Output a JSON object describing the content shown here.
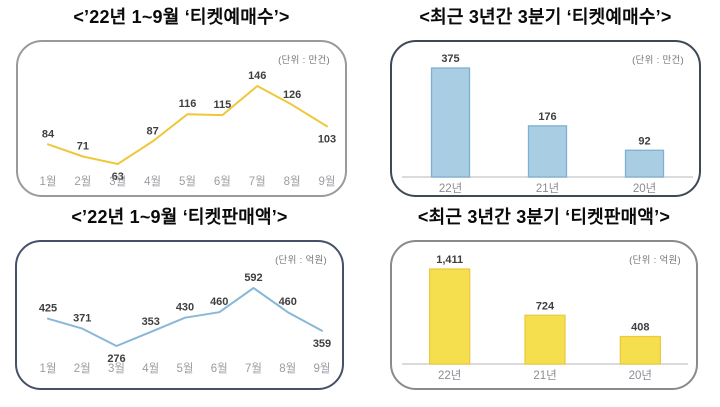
{
  "chart_data": [
    {
      "id": "ticket-reservations-monthly-2022",
      "type": "line",
      "title": "<’22년 1~9월 ‘티켓예매수’>",
      "unit": "(단위 : 만건)",
      "categories": [
        "1월",
        "2월",
        "3월",
        "4월",
        "5월",
        "6월",
        "7월",
        "8월",
        "9월"
      ],
      "values": [
        84,
        71,
        63,
        87,
        116,
        115,
        146,
        126,
        103
      ],
      "value_labels": [
        "84",
        "71",
        "63",
        "87",
        "116",
        "115",
        "146",
        "126",
        "103"
      ],
      "label_positions": [
        "above",
        "above",
        "below",
        "above",
        "above",
        "above",
        "above",
        "above",
        "below"
      ],
      "legend": "none",
      "grid": false,
      "colors": {
        "line": "#efc73b",
        "value_label": "#3f3f3f",
        "category_label": "#9b9ba1",
        "panel_border": "#9a9a9a"
      }
    },
    {
      "id": "ticket-reservations-q3-3years",
      "type": "bar",
      "title": "<최근 3년간 3분기 ‘티켓예매수’>",
      "unit": "(단위 : 만건)",
      "categories": [
        "22년",
        "21년",
        "20년"
      ],
      "values": [
        375,
        176,
        92
      ],
      "value_labels": [
        "375",
        "176",
        "92"
      ],
      "legend": "none",
      "grid": false,
      "colors": {
        "bar_fill": "#a9cee4",
        "bar_border": "#7fb0d2",
        "baseline": "#cfcfcf",
        "value_label": "#3f3f3f",
        "category_label": "#8b8b93",
        "panel_border": "#3d4956"
      }
    },
    {
      "id": "ticket-sales-monthly-2022",
      "type": "line",
      "title": "<’22년 1~9월 ‘티켓판매액’>",
      "unit": "(단위 : 억원)",
      "categories": [
        "1월",
        "2월",
        "3월",
        "4월",
        "5월",
        "6월",
        "7월",
        "8월",
        "9월"
      ],
      "values": [
        425,
        371,
        276,
        353,
        430,
        460,
        592,
        460,
        359
      ],
      "value_labels": [
        "425",
        "371",
        "276",
        "353",
        "430",
        "460",
        "592",
        "460",
        "359"
      ],
      "label_positions": [
        "above",
        "above",
        "below",
        "above",
        "above",
        "above",
        "above",
        "above",
        "below"
      ],
      "legend": "none",
      "grid": false,
      "colors": {
        "line": "#88b8d8",
        "value_label": "#3f3f3f",
        "category_label": "#9b9ba1",
        "panel_border": "#475069"
      }
    },
    {
      "id": "ticket-sales-q3-3years",
      "type": "bar",
      "title": "<최근 3년간 3분기 ‘티켓판매액’>",
      "unit": "(단위 : 억원)",
      "categories": [
        "22년",
        "21년",
        "20년"
      ],
      "values": [
        1411,
        724,
        408
      ],
      "value_labels": [
        "1,411",
        "724",
        "408"
      ],
      "legend": "none",
      "grid": false,
      "colors": {
        "bar_fill": "#f6df4f",
        "bar_border": "#eec940",
        "baseline": "#cfcfcf",
        "value_label": "#3f3f3f",
        "category_label": "#8b8b93",
        "panel_border": "#8a8a8a"
      }
    }
  ]
}
